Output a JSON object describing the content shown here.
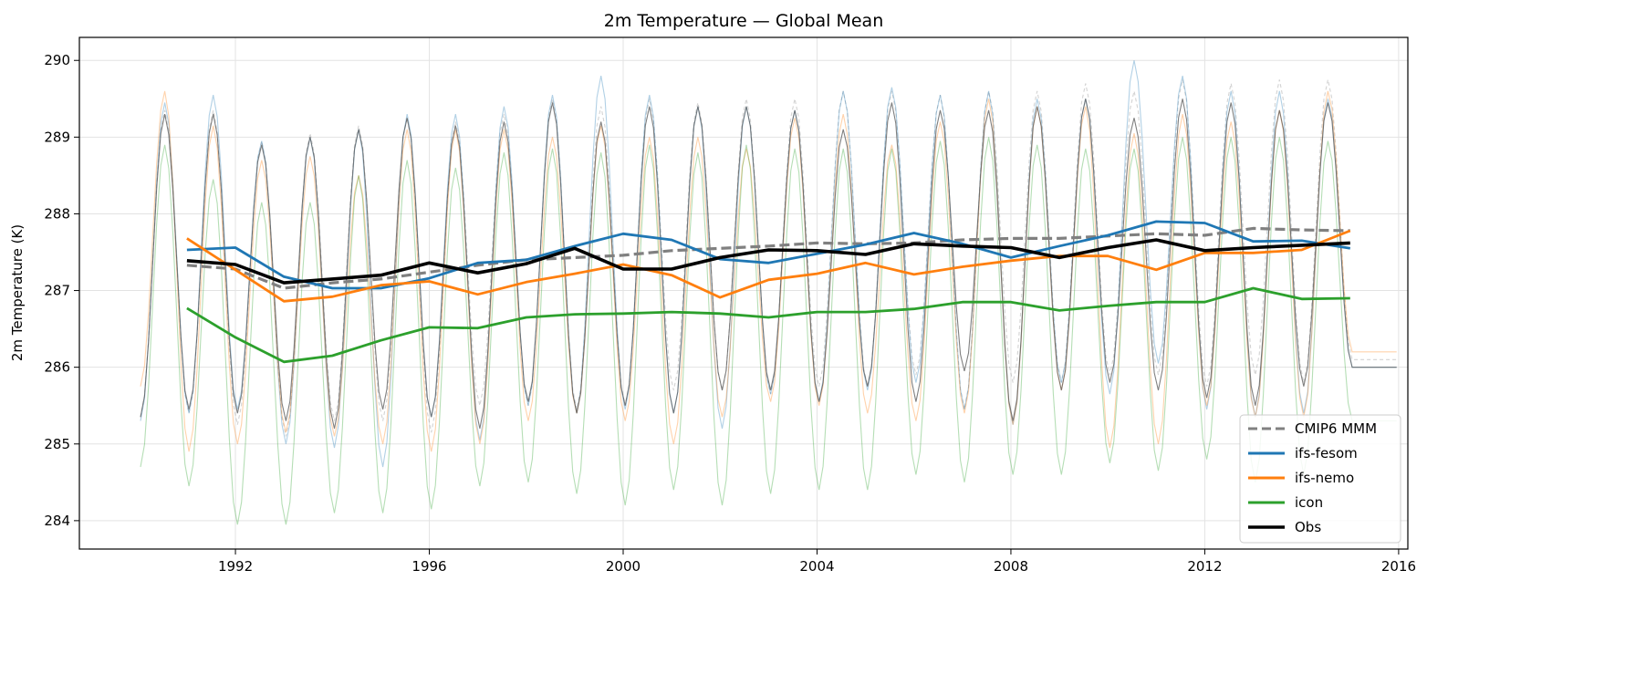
{
  "chart_data": {
    "type": "line",
    "title": "2m Temperature — Global Mean",
    "xlabel": "",
    "ylabel": "2m Temperature (K)",
    "xlim": [
      1988.78,
      2016.19
    ],
    "ylim": [
      283.63,
      290.3
    ],
    "xticks": [
      1992,
      1996,
      2000,
      2004,
      2008,
      2012,
      2016
    ],
    "yticks": [
      284,
      285,
      286,
      287,
      288,
      289,
      290
    ],
    "grid": true,
    "legend_position": "bottom-right",
    "annual_years": [
      1991,
      1992,
      1993,
      1994,
      1995,
      1996,
      1997,
      1998,
      1999,
      2000,
      2001,
      2002,
      2003,
      2004,
      2005,
      2006,
      2007,
      2008,
      2009,
      2010,
      2011,
      2012,
      2013,
      2014,
      2015
    ],
    "series": [
      {
        "name": "CMIP6 MMM",
        "color": "#808080",
        "style": "dashed",
        "annual": [
          287.33,
          287.28,
          287.03,
          287.1,
          287.15,
          287.24,
          287.33,
          287.4,
          287.43,
          287.46,
          287.52,
          287.55,
          287.58,
          287.62,
          287.61,
          287.62,
          287.66,
          287.68,
          287.68,
          287.71,
          287.74,
          287.72,
          287.81,
          287.79,
          287.78
        ],
        "monthly_peaks": [
          289.35,
          289.35,
          288.95,
          289.05,
          289.15,
          289.25,
          289.2,
          289.3,
          289.5,
          289.4,
          289.5,
          289.45,
          289.5,
          289.5,
          289.6,
          289.6,
          289.55,
          289.6,
          289.6,
          289.7,
          289.6,
          289.75,
          289.7,
          289.75,
          289.75
        ],
        "monthly_troughs": [
          285.35,
          285.4,
          285.25,
          285.1,
          285.3,
          285.3,
          285.15,
          285.5,
          285.5,
          285.45,
          285.5,
          285.7,
          285.7,
          285.65,
          285.75,
          285.75,
          285.9,
          285.45,
          285.8,
          285.8,
          285.9,
          285.9,
          285.75,
          285.9,
          285.8,
          286.1
        ]
      },
      {
        "name": "ifs-fesom",
        "color": "#1f77b4",
        "style": "solid",
        "annual": [
          287.53,
          287.56,
          287.18,
          287.03,
          287.03,
          287.16,
          287.36,
          287.4,
          287.58,
          287.74,
          287.66,
          287.41,
          287.36,
          287.48,
          287.6,
          287.75,
          287.61,
          287.43,
          287.58,
          287.72,
          287.9,
          287.88,
          287.64,
          287.65,
          287.55
        ],
        "monthly_peaks": [
          289.45,
          289.55,
          288.95,
          289.0,
          289.1,
          289.3,
          289.3,
          289.4,
          289.55,
          289.8,
          289.55,
          289.4,
          289.4,
          289.35,
          289.6,
          289.65,
          289.55,
          289.6,
          289.5,
          289.5,
          290.0,
          289.8,
          289.6,
          289.6,
          289.5
        ],
        "monthly_troughs": [
          285.3,
          285.4,
          285.45,
          285.0,
          284.95,
          284.7,
          285.35,
          285.05,
          285.5,
          285.4,
          285.45,
          285.4,
          285.2,
          285.65,
          285.55,
          285.7,
          285.8,
          285.45,
          285.25,
          285.8,
          285.65,
          286.05,
          285.45,
          285.35,
          285.4,
          286.0
        ]
      },
      {
        "name": "ifs-nemo",
        "color": "#ff7f0e",
        "style": "solid",
        "annual": [
          287.68,
          287.27,
          286.86,
          286.92,
          287.07,
          287.12,
          286.95,
          287.11,
          287.22,
          287.34,
          287.2,
          286.91,
          287.14,
          287.22,
          287.36,
          287.21,
          287.31,
          287.39,
          287.45,
          287.45,
          287.27,
          287.49,
          287.49,
          287.53,
          287.78
        ],
        "monthly_peaks": [
          289.6,
          289.15,
          288.7,
          288.75,
          288.5,
          289.1,
          289.1,
          289.1,
          289.0,
          289.15,
          289.0,
          289.0,
          288.85,
          289.25,
          289.3,
          288.9,
          289.2,
          289.5,
          289.4,
          289.4,
          289.05,
          289.3,
          289.2,
          289.35,
          289.6
        ],
        "monthly_troughs": [
          285.75,
          284.9,
          285.0,
          285.15,
          285.1,
          285.0,
          284.9,
          285.0,
          285.3,
          285.4,
          285.3,
          285.0,
          285.35,
          285.55,
          285.5,
          285.4,
          285.3,
          285.4,
          285.25,
          285.7,
          284.95,
          285.0,
          285.5,
          285.35,
          285.35,
          286.2
        ]
      },
      {
        "name": "icon",
        "color": "#2ca02c",
        "style": "solid",
        "annual": [
          286.77,
          286.39,
          286.07,
          286.15,
          286.35,
          286.52,
          286.51,
          286.65,
          286.69,
          286.7,
          286.72,
          286.7,
          286.65,
          286.72,
          286.72,
          286.76,
          286.85,
          286.85,
          286.74,
          286.8,
          286.85,
          286.85,
          287.03,
          286.89,
          286.9
        ],
        "monthly_peaks": [
          288.9,
          288.45,
          288.15,
          288.15,
          288.5,
          288.7,
          288.6,
          288.8,
          288.85,
          288.8,
          288.9,
          288.8,
          288.9,
          288.85,
          288.85,
          288.85,
          288.95,
          289.0,
          288.9,
          288.85,
          288.85,
          289.0,
          289.0,
          289.0,
          288.95
        ],
        "monthly_troughs": [
          284.7,
          284.45,
          283.95,
          283.95,
          284.1,
          284.1,
          284.15,
          284.45,
          284.5,
          284.35,
          284.2,
          284.4,
          284.2,
          284.35,
          284.4,
          284.4,
          284.6,
          284.5,
          284.6,
          284.6,
          284.75,
          284.65,
          284.8,
          284.5,
          284.6,
          285.3
        ]
      },
      {
        "name": "Obs",
        "color": "#000000",
        "style": "solid",
        "annual": [
          287.39,
          287.34,
          287.1,
          287.15,
          287.2,
          287.36,
          287.23,
          287.35,
          287.55,
          287.28,
          287.28,
          287.43,
          287.53,
          287.52,
          287.47,
          287.61,
          287.58,
          287.56,
          287.43,
          287.56,
          287.66,
          287.52,
          287.56,
          287.59,
          287.62
        ],
        "monthly_peaks": [
          289.3,
          289.3,
          288.9,
          289.0,
          289.1,
          289.25,
          289.15,
          289.2,
          289.45,
          289.2,
          289.4,
          289.4,
          289.4,
          289.35,
          289.1,
          289.45,
          289.35,
          289.35,
          289.4,
          289.5,
          289.25,
          289.5,
          289.45,
          289.35,
          289.45
        ],
        "monthly_troughs": [
          285.35,
          285.45,
          285.4,
          285.3,
          285.2,
          285.45,
          285.35,
          285.2,
          285.55,
          285.4,
          285.5,
          285.4,
          285.7,
          285.7,
          285.55,
          285.75,
          285.55,
          285.95,
          285.3,
          285.7,
          285.8,
          285.7,
          285.6,
          285.5,
          285.75,
          286.0
        ]
      }
    ]
  }
}
